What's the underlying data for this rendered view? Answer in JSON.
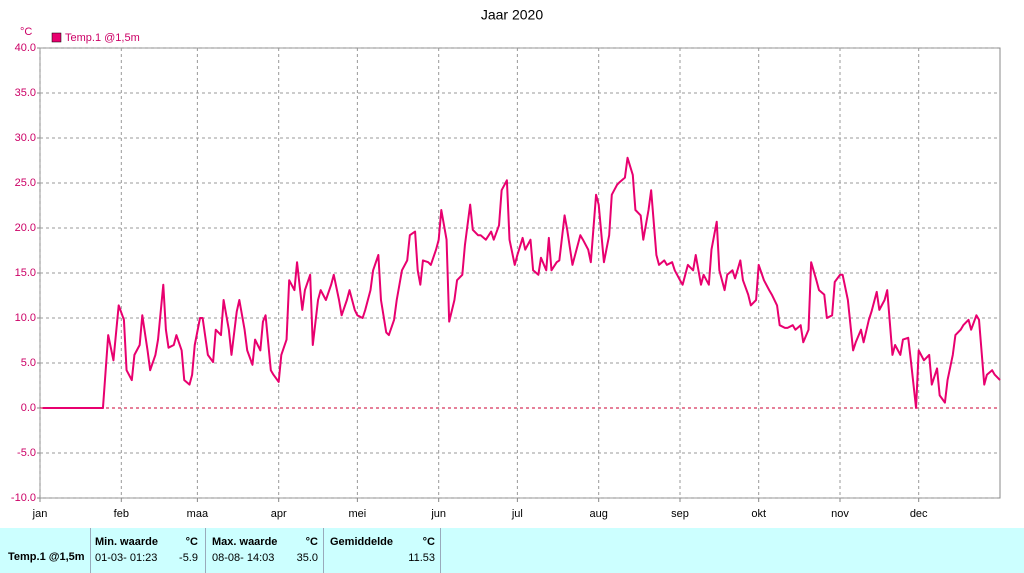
{
  "chart_data": {
    "type": "line",
    "title": "Jaar 2020",
    "y_unit": "°C",
    "xlim": [
      0,
      366
    ],
    "xticks": [
      {
        "value": 0,
        "label": "jan"
      },
      {
        "value": 31,
        "label": "feb"
      },
      {
        "value": 60,
        "label": "maa"
      },
      {
        "value": 91,
        "label": "apr"
      },
      {
        "value": 121,
        "label": "mei"
      },
      {
        "value": 152,
        "label": "jun"
      },
      {
        "value": 182,
        "label": "jul"
      },
      {
        "value": 213,
        "label": "aug"
      },
      {
        "value": 244,
        "label": "sep"
      },
      {
        "value": 274,
        "label": "okt"
      },
      {
        "value": 305,
        "label": "nov"
      },
      {
        "value": 335,
        "label": "dec"
      }
    ],
    "ylim": [
      -10,
      40
    ],
    "yticks": [
      {
        "value": -10,
        "label": "-10.0"
      },
      {
        "value": -5,
        "label": "-5.0"
      },
      {
        "value": 0,
        "label": "0.0"
      },
      {
        "value": 5,
        "label": "5.0"
      },
      {
        "value": 10,
        "label": "10.0"
      },
      {
        "value": 15,
        "label": "15.0"
      },
      {
        "value": 20,
        "label": "20.0"
      },
      {
        "value": 25,
        "label": "25.0"
      },
      {
        "value": 30,
        "label": "30.0"
      },
      {
        "value": 35,
        "label": "35.0"
      },
      {
        "value": 40,
        "label": "40.0"
      }
    ],
    "grid": true,
    "zero_line_color": "#cc0033",
    "legend": "top-left",
    "x": [
      1,
      24,
      26,
      28,
      30,
      32,
      33,
      35,
      36,
      38,
      39,
      41,
      42,
      44,
      45,
      47,
      48,
      49,
      51,
      52,
      54,
      55,
      57,
      58,
      59,
      61,
      62,
      64,
      66,
      67,
      69,
      70,
      72,
      73,
      75,
      76,
      78,
      79,
      81,
      82,
      84,
      85,
      86,
      88,
      89,
      91,
      92,
      94,
      95,
      97,
      98,
      100,
      101,
      103,
      104,
      106,
      107,
      109,
      111,
      112,
      114,
      115,
      117,
      118,
      120,
      121,
      123,
      124,
      126,
      127,
      129,
      130,
      132,
      133,
      135,
      136,
      138,
      140,
      141,
      143,
      144,
      145,
      146,
      148,
      149,
      151,
      152,
      153,
      155,
      156,
      158,
      159,
      161,
      162,
      164,
      165,
      167,
      168,
      170,
      172,
      173,
      175,
      176,
      178,
      179,
      181,
      182,
      184,
      185,
      187,
      188,
      190,
      191,
      193,
      194,
      195,
      197,
      198,
      200,
      201,
      203,
      204,
      206,
      207,
      209,
      210,
      212,
      213,
      215,
      217,
      218,
      220,
      221,
      223,
      224,
      226,
      227,
      229,
      230,
      232,
      233,
      235,
      236,
      238,
      239,
      241,
      242,
      244,
      245,
      247,
      249,
      250,
      252,
      253,
      255,
      256,
      258,
      259,
      261,
      262,
      264,
      265,
      267,
      268,
      270,
      271,
      273,
      274,
      276,
      278,
      279,
      281,
      282,
      284,
      285,
      287,
      288,
      290,
      291,
      293,
      294,
      296,
      297,
      299,
      300,
      302,
      303,
      305,
      306,
      308,
      310,
      311,
      313,
      314,
      316,
      317,
      319,
      320,
      322,
      323,
      325,
      326,
      328,
      329,
      331,
      332,
      334,
      335,
      337,
      339,
      340,
      342,
      343,
      345,
      346,
      348,
      349,
      351,
      352,
      354,
      355,
      357,
      358,
      360,
      361,
      363,
      364,
      366
    ],
    "series": [
      {
        "name": "Temp.1 @1,5m",
        "color": "#e8006f",
        "values": [
          0,
          0,
          8.1,
          5.3,
          11.4,
          9.8,
          4.2,
          3.1,
          5.9,
          7.0,
          10.3,
          6.4,
          4.2,
          5.9,
          7.6,
          13.7,
          8.7,
          6.7,
          7.0,
          8.1,
          6.4,
          3.1,
          2.6,
          3.7,
          7.0,
          10.0,
          10.0,
          5.9,
          5.1,
          8.7,
          8.1,
          12.0,
          8.7,
          5.9,
          10.7,
          12.0,
          8.7,
          6.4,
          4.8,
          7.6,
          6.4,
          9.6,
          10.3,
          4.2,
          3.7,
          2.9,
          5.9,
          7.6,
          14.2,
          13.1,
          16.2,
          10.9,
          13.1,
          14.8,
          7.0,
          12.0,
          13.1,
          12.0,
          13.7,
          14.8,
          12.0,
          10.3,
          12.0,
          13.1,
          10.9,
          10.3,
          10.0,
          10.9,
          13.1,
          15.3,
          17.0,
          12.0,
          8.4,
          8.1,
          9.8,
          12.0,
          15.3,
          16.4,
          19.2,
          19.6,
          15.3,
          13.7,
          16.4,
          16.2,
          15.9,
          17.6,
          18.7,
          22.0,
          18.7,
          9.6,
          12.0,
          14.2,
          14.8,
          18.1,
          22.6,
          19.8,
          19.2,
          19.2,
          18.7,
          19.6,
          18.7,
          20.3,
          24.2,
          25.3,
          18.7,
          15.9,
          17.0,
          18.9,
          17.6,
          18.7,
          15.3,
          14.8,
          16.7,
          15.3,
          18.9,
          15.3,
          16.2,
          16.4,
          21.4,
          19.8,
          15.9,
          17.0,
          19.2,
          18.7,
          17.6,
          16.2,
          23.7,
          22.6,
          16.2,
          19.2,
          23.7,
          24.8,
          25.1,
          25.6,
          27.8,
          25.9,
          22.0,
          21.4,
          18.7,
          22.0,
          24.2,
          17.0,
          15.9,
          16.4,
          15.9,
          16.2,
          15.3,
          14.2,
          13.7,
          15.9,
          15.3,
          17.0,
          13.7,
          14.8,
          13.7,
          17.6,
          20.7,
          15.3,
          13.1,
          14.8,
          15.3,
          14.4,
          16.4,
          14.2,
          12.6,
          11.4,
          12.0,
          15.9,
          14.2,
          13.1,
          12.6,
          11.4,
          9.2,
          8.9,
          8.9,
          9.2,
          8.7,
          9.2,
          7.3,
          8.7,
          16.2,
          14.2,
          13.1,
          12.6,
          10.0,
          10.3,
          14.0,
          14.8,
          14.8,
          12.0,
          6.4,
          7.3,
          8.7,
          7.3,
          9.8,
          10.7,
          12.9,
          10.9,
          12.0,
          13.1,
          5.9,
          7.0,
          5.9,
          7.6,
          7.8,
          5.3,
          0.0,
          6.4,
          5.3,
          5.9,
          2.6,
          4.4,
          1.4,
          0.6,
          3.1,
          5.9,
          8.1,
          8.7,
          9.2,
          9.8,
          8.7,
          10.3,
          9.8,
          2.6,
          3.7,
          4.2,
          3.7,
          3.1
        ]
      }
    ]
  },
  "table": {
    "columns": [
      "Min. waarde",
      "°C",
      "Max. waarde",
      "°C",
      "Gemiddelde",
      "°C"
    ],
    "rows": [
      [
        "Temp.1 @1,5m",
        "01-03- 01:23",
        "-5.9",
        "08-08- 14:03",
        "35.0",
        "11.53"
      ]
    ]
  }
}
